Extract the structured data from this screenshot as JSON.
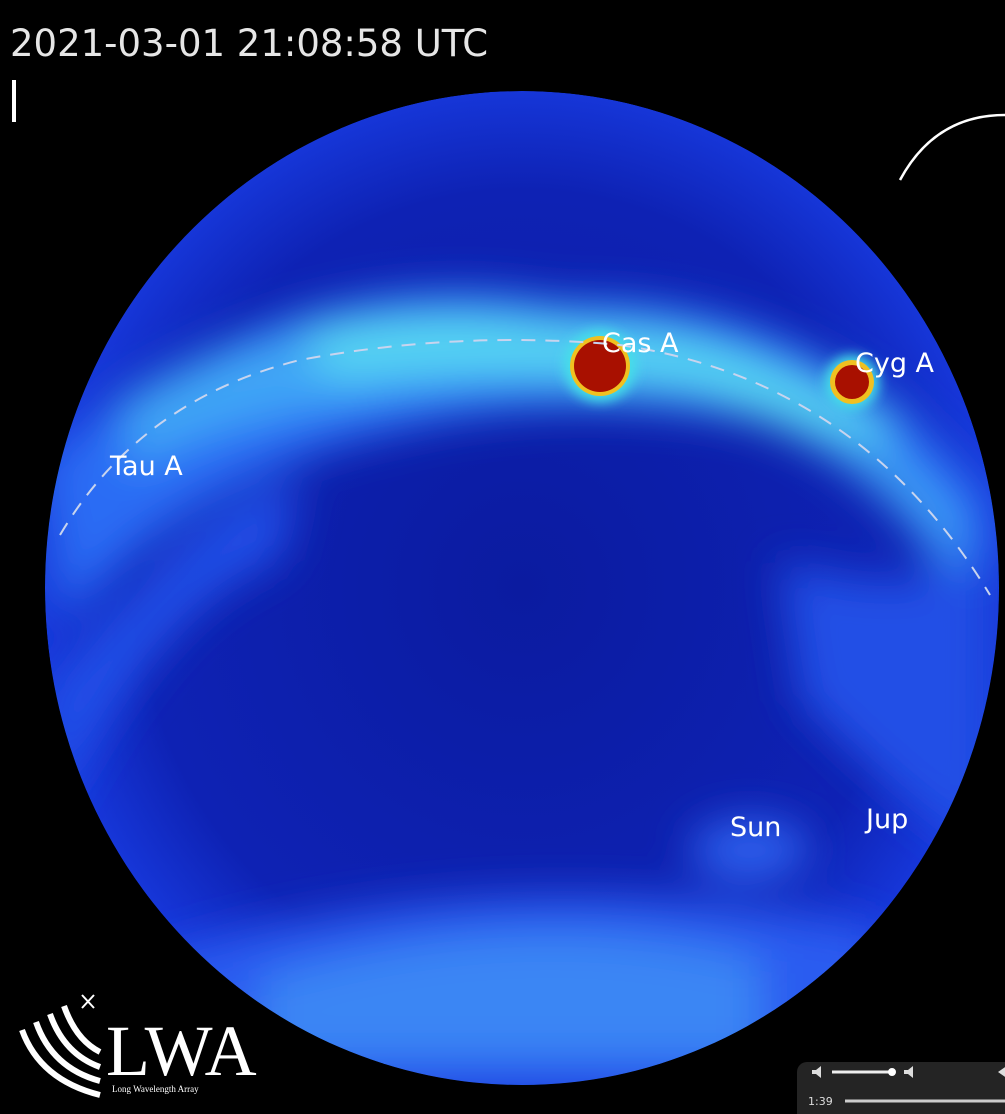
{
  "timestamp": "2021-03-01 21:08:58 UTC",
  "sources": [
    {
      "label": "Tau A"
    },
    {
      "label": "Cas A"
    },
    {
      "label": "Cyg A"
    },
    {
      "label": "Sun"
    },
    {
      "label": "Jup"
    }
  ],
  "logo": {
    "title": "LWA",
    "subtitle": "Long Wavelength Array"
  },
  "player": {
    "current_time": "1:39"
  }
}
